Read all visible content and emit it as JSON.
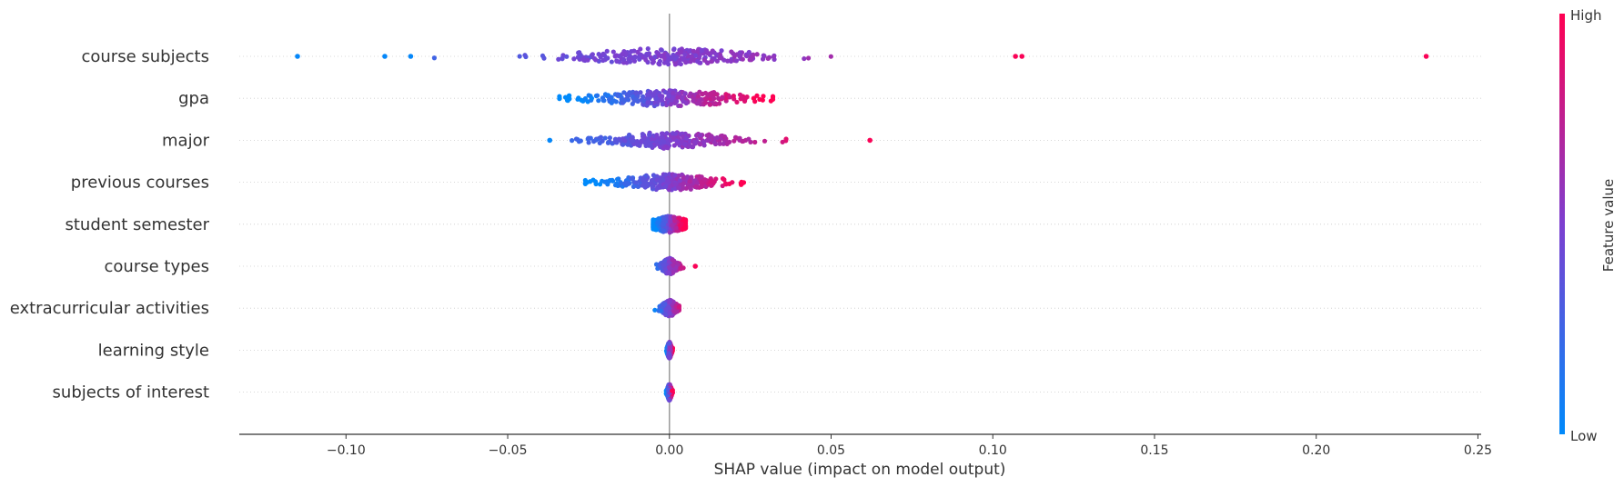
{
  "chart_data": {
    "type": "scatter",
    "subtype": "shap-beeswarm",
    "title": "",
    "xlabel": "SHAP value (impact on model output)",
    "xlim": [
      -0.133,
      0.251
    ],
    "xticks": [
      -0.1,
      -0.05,
      0.0,
      0.05,
      0.1,
      0.15,
      0.2,
      0.25
    ],
    "xtick_labels": [
      "−0.10",
      "−0.05",
      "0.00",
      "0.05",
      "0.10",
      "0.15",
      "0.20",
      "0.25"
    ],
    "zero_line": 0.0,
    "gridlines": "horizontal-dotted",
    "features": [
      {
        "name": "course subjects",
        "min": -0.115,
        "max": 0.234,
        "spread": 0.018,
        "width": 0.055,
        "outliers": [
          -0.115,
          -0.088,
          -0.08,
          0.107,
          0.109,
          0.234
        ]
      },
      {
        "name": "gpa",
        "min": -0.034,
        "max": 0.032,
        "spread": 0.015,
        "width": 0.045,
        "outliers": []
      },
      {
        "name": "major",
        "min": -0.037,
        "max": 0.062,
        "spread": 0.012,
        "width": 0.042,
        "outliers": [
          -0.037,
          0.062
        ]
      },
      {
        "name": "previous courses",
        "min": -0.026,
        "max": 0.023,
        "spread": 0.01,
        "width": 0.04,
        "outliers": []
      },
      {
        "name": "student semester",
        "min": -0.005,
        "max": 0.005,
        "spread": 0.004,
        "width": 0.05,
        "outliers": []
      },
      {
        "name": "course types",
        "min": -0.004,
        "max": 0.008,
        "spread": 0.0015,
        "width": 0.035,
        "outliers": [
          0.008
        ]
      },
      {
        "name": "extracurricular activities",
        "min": -0.006,
        "max": 0.003,
        "spread": 0.0015,
        "width": 0.035,
        "outliers": []
      },
      {
        "name": "learning style",
        "min": -0.001,
        "max": 0.001,
        "spread": 0.0004,
        "width": 0.04,
        "outliers": []
      },
      {
        "name": "subjects of interest",
        "min": -0.001,
        "max": 0.001,
        "spread": 0.0004,
        "width": 0.035,
        "outliers": []
      }
    ],
    "colorbar": {
      "label": "Feature value",
      "high_label": "High",
      "low_label": "Low",
      "low_color": "#008afb",
      "mid_color": "#7d3fd0",
      "high_color": "#ff0052"
    }
  }
}
